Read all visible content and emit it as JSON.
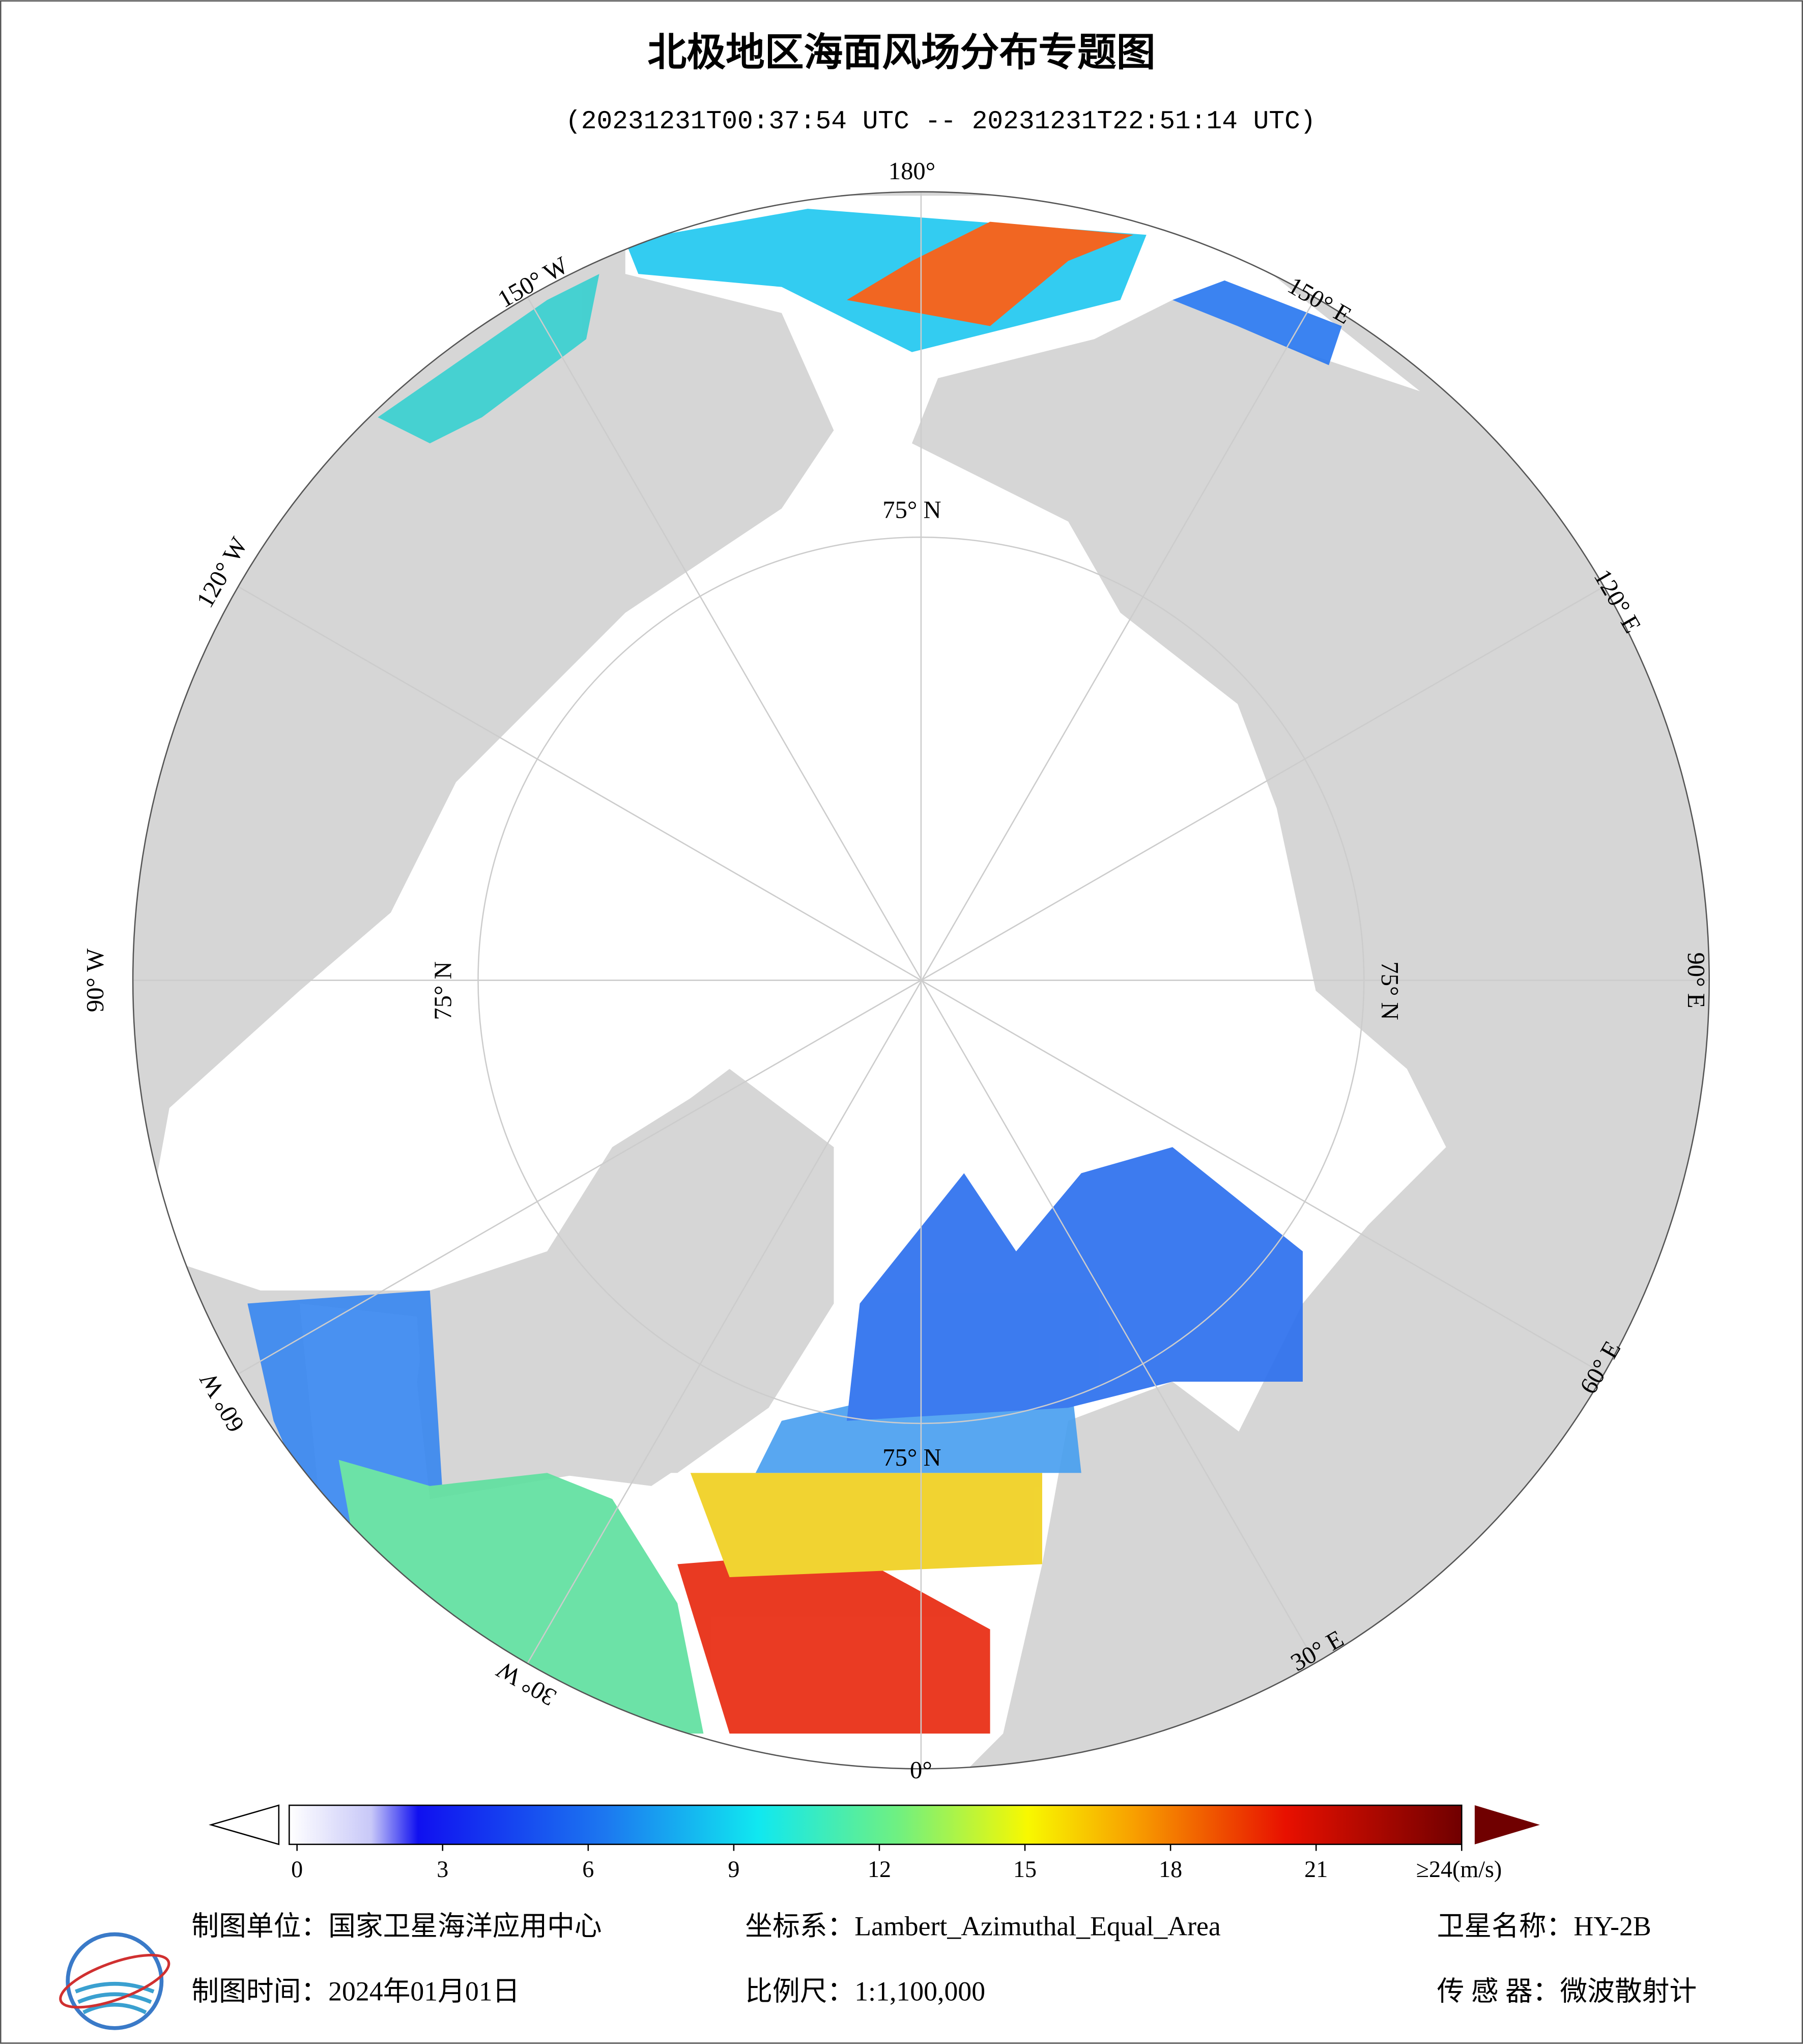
{
  "header": {
    "title": "北极地区海面风场分布专题图",
    "subtitle": "(20231231T00:37:54 UTC -- 20231231T22:51:14 UTC)"
  },
  "map": {
    "labels": [
      "180°",
      "150° W",
      "120° W",
      "90° W",
      "60° W",
      "30° W",
      "0°",
      "30° E",
      "60° E",
      "90° E",
      "120° E",
      "150° E",
      "75° N",
      "75° N",
      "75° N",
      "75° N"
    ]
  },
  "colorbar": {
    "lim": [
      0,
      24
    ],
    "ticks": [
      0,
      3,
      6,
      9,
      12,
      15,
      18,
      21,
      {
        "value": 24,
        "label": "≥24(m/s)"
      }
    ]
  },
  "footer": {
    "unit": "制图单位：国家卫星海洋应用中心",
    "crs": "坐标系：Lambert_Azimuthal_Equal_Area",
    "satellite": "卫星名称：HY-2B",
    "date": "制图时间：2024年01月01日",
    "scale": "比例尺：1:1,100,000",
    "sensor": "传 感 器：微波散射计"
  }
}
